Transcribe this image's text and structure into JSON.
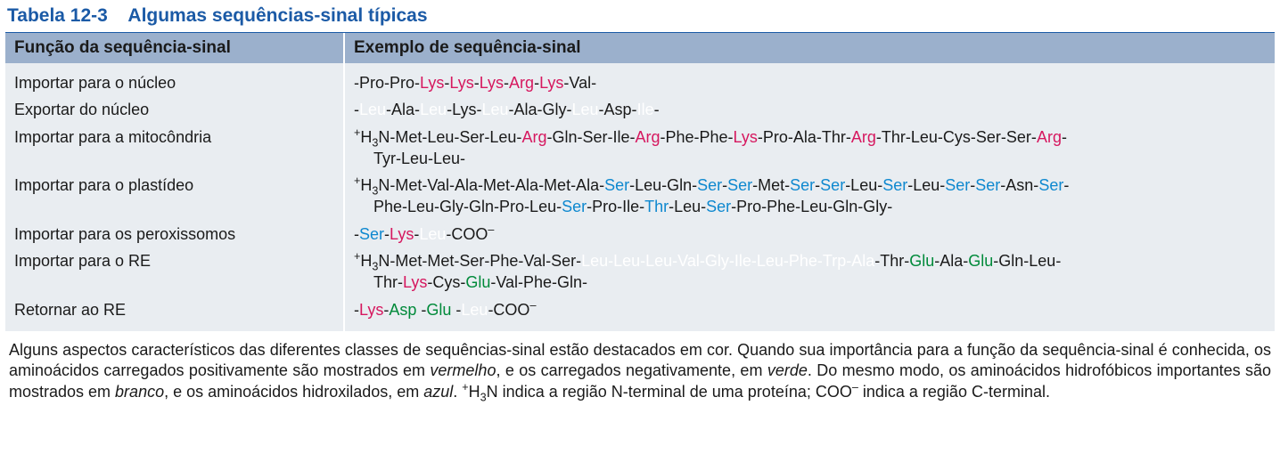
{
  "colors": {
    "title_blue": "#1b5aa6",
    "header_bg": "#9bb0cc",
    "body_bg": "#e9edf1",
    "positive_red": "#d6185f",
    "negative_green": "#008a3a",
    "hydroxylated_blue": "#0e88cf",
    "hydrophobic_white": "#ffffff",
    "black": "#1a1a1a"
  },
  "title": {
    "prefix": "Tabela 12-3",
    "text": "Algumas sequências-sinal típicas"
  },
  "headers": {
    "func": "Função da sequência-sinal",
    "example": "Exemplo de sequência-sinal"
  },
  "rows": [
    {
      "func": "Importar para o núcleo",
      "seq": [
        {
          "t": "-Pro-Pro-",
          "c": "black"
        },
        {
          "t": "Lys",
          "c": "red"
        },
        {
          "t": "-",
          "c": "black"
        },
        {
          "t": "Lys",
          "c": "red"
        },
        {
          "t": "-",
          "c": "black"
        },
        {
          "t": "Lys",
          "c": "red"
        },
        {
          "t": "-",
          "c": "black"
        },
        {
          "t": "Arg",
          "c": "red"
        },
        {
          "t": "-",
          "c": "black"
        },
        {
          "t": "Lys",
          "c": "red"
        },
        {
          "t": "-Val-",
          "c": "black"
        }
      ]
    },
    {
      "func": "Exportar do núcleo",
      "seq": [
        {
          "t": "-",
          "c": "black"
        },
        {
          "t": "Leu",
          "c": "white"
        },
        {
          "t": "-Ala-",
          "c": "black"
        },
        {
          "t": "Leu",
          "c": "white"
        },
        {
          "t": "-Lys-",
          "c": "black"
        },
        {
          "t": "Leu",
          "c": "white"
        },
        {
          "t": "-Ala-Gly-",
          "c": "black"
        },
        {
          "t": "Leu",
          "c": "white"
        },
        {
          "t": "-Asp-",
          "c": "black"
        },
        {
          "t": "Ile",
          "c": "white"
        },
        {
          "t": "-",
          "c": "black"
        }
      ]
    },
    {
      "func": "Importar para a mitocôndria",
      "seq": [
        {
          "t": "H",
          "pre_sup": "+",
          "c": "black"
        },
        {
          "t": "3",
          "sub": true,
          "c": "black"
        },
        {
          "t": "N-Met-Leu-Ser-Leu-",
          "c": "black"
        },
        {
          "t": "Arg",
          "c": "red"
        },
        {
          "t": "-Gln-Ser-Ile-",
          "c": "black"
        },
        {
          "t": "Arg",
          "c": "red"
        },
        {
          "t": "-Phe-Phe-",
          "c": "black"
        },
        {
          "t": "Lys",
          "c": "red"
        },
        {
          "t": "-Pro-Ala-Thr-",
          "c": "black"
        },
        {
          "t": "Arg",
          "c": "red"
        },
        {
          "t": "-Thr-Leu-Cys-Ser-Ser-",
          "c": "black"
        },
        {
          "t": "Arg",
          "c": "red"
        },
        {
          "t": "-",
          "c": "black"
        },
        {
          "t": "Tyr-Leu-Leu-",
          "c": "black",
          "newline": true
        }
      ]
    },
    {
      "func": "Importar para o plastídeo",
      "seq": [
        {
          "t": "H",
          "pre_sup": "+",
          "c": "black"
        },
        {
          "t": "3",
          "sub": true,
          "c": "black"
        },
        {
          "t": "N-Met-Val-Ala-Met-Ala-Met-Ala-",
          "c": "black"
        },
        {
          "t": "Ser",
          "c": "blue"
        },
        {
          "t": "-Leu-Gln-",
          "c": "black"
        },
        {
          "t": "Ser",
          "c": "blue"
        },
        {
          "t": "-",
          "c": "black"
        },
        {
          "t": "Ser",
          "c": "blue"
        },
        {
          "t": "-Met-",
          "c": "black"
        },
        {
          "t": "Ser",
          "c": "blue"
        },
        {
          "t": "-",
          "c": "black"
        },
        {
          "t": "Ser",
          "c": "blue"
        },
        {
          "t": "-Leu-",
          "c": "black"
        },
        {
          "t": "Ser",
          "c": "blue"
        },
        {
          "t": "-Leu-",
          "c": "black"
        },
        {
          "t": "Ser",
          "c": "blue"
        },
        {
          "t": "-",
          "c": "black"
        },
        {
          "t": "Ser",
          "c": "blue"
        },
        {
          "t": "-Asn-",
          "c": "black"
        },
        {
          "t": "Ser",
          "c": "blue"
        },
        {
          "t": "-",
          "c": "black"
        },
        {
          "t": "Phe-Leu-Gly-Gln-Pro-Leu-",
          "c": "black",
          "newline": true
        },
        {
          "t": "Ser",
          "c": "blue"
        },
        {
          "t": "-Pro-Ile-",
          "c": "black"
        },
        {
          "t": "Thr",
          "c": "blue"
        },
        {
          "t": "-Leu-",
          "c": "black"
        },
        {
          "t": "Ser",
          "c": "blue"
        },
        {
          "t": "-Pro-Phe-Leu-Gln-Gly-",
          "c": "black"
        }
      ]
    },
    {
      "func": "Importar para os peroxissomos",
      "seq": [
        {
          "t": "-",
          "c": "black"
        },
        {
          "t": "Ser",
          "c": "blue"
        },
        {
          "t": "-",
          "c": "black"
        },
        {
          "t": "Lys",
          "c": "red"
        },
        {
          "t": "-",
          "c": "black"
        },
        {
          "t": "Leu",
          "c": "white"
        },
        {
          "t": "-COO",
          "c": "black"
        },
        {
          "t": "–",
          "sup": true,
          "c": "black"
        }
      ]
    },
    {
      "func": "Importar para o RE",
      "seq": [
        {
          "t": "H",
          "pre_sup": "+",
          "c": "black"
        },
        {
          "t": "3",
          "sub": true,
          "c": "black"
        },
        {
          "t": "N-Met-Met-Ser-Phe-Val-Ser-",
          "c": "black"
        },
        {
          "t": "Leu-Leu-Leu-Val-Gly-Ile-Leu-Phe-Trp-Ala",
          "c": "white"
        },
        {
          "t": "-Thr-",
          "c": "black"
        },
        {
          "t": "Glu",
          "c": "green"
        },
        {
          "t": "-Ala-",
          "c": "black"
        },
        {
          "t": "Glu",
          "c": "green"
        },
        {
          "t": "-Gln-Leu-",
          "c": "black"
        },
        {
          "t": "Thr-",
          "c": "black",
          "newline": true
        },
        {
          "t": "Lys",
          "c": "red"
        },
        {
          "t": "-Cys-",
          "c": "black"
        },
        {
          "t": "Glu",
          "c": "green"
        },
        {
          "t": "-Val-Phe-Gln-",
          "c": "black"
        }
      ]
    },
    {
      "func": "Retornar ao RE",
      "seq": [
        {
          "t": "-",
          "c": "black"
        },
        {
          "t": "Lys",
          "c": "red"
        },
        {
          "t": "-",
          "c": "black"
        },
        {
          "t": "Asp",
          "c": "green"
        },
        {
          "t": " -",
          "c": "black"
        },
        {
          "t": "Glu",
          "c": "green"
        },
        {
          "t": " -",
          "c": "black"
        },
        {
          "t": "Leu",
          "c": "white"
        },
        {
          "t": "-COO",
          "c": "black"
        },
        {
          "t": "–",
          "sup": true,
          "c": "black"
        }
      ]
    }
  ],
  "caption": {
    "parts": [
      {
        "t": "Alguns aspectos característicos das diferentes classes de sequências-sinal estão destacados em cor. Quando sua importância para a função da sequência-sinal é conhecida, os aminoácidos carregados positivamente são mostrados em "
      },
      {
        "t": "vermelho",
        "em": true
      },
      {
        "t": ", e os carregados negativamente, em "
      },
      {
        "t": "verde",
        "em": true
      },
      {
        "t": ". Do mesmo modo, os aminoácidos hidrofóbicos importantes são mostrados em "
      },
      {
        "t": "branco",
        "em": true
      },
      {
        "t": ", e os aminoácidos hidroxilados, em "
      },
      {
        "t": "azul",
        "em": true
      },
      {
        "t": ". "
      },
      {
        "t": "H",
        "pre_sup": "+"
      },
      {
        "t": "3",
        "sub": true
      },
      {
        "t": "N indica a região N-terminal de uma proteína; COO"
      },
      {
        "t": "–",
        "sup": true
      },
      {
        "t": " indica a região C-terminal."
      }
    ]
  }
}
